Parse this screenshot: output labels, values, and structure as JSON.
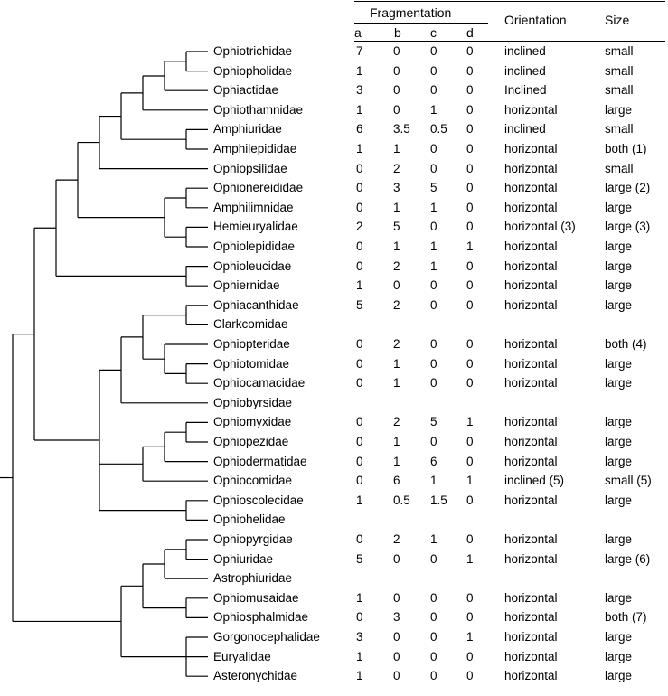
{
  "header": {
    "fragmentation": "Fragmentation",
    "subcols": [
      "a",
      "b",
      "c",
      "d"
    ],
    "orientation": "Orientation",
    "size": "Size"
  },
  "rows": [
    {
      "taxon": "Ophiotrichidae",
      "a": "7",
      "b": "0",
      "c": "0",
      "d": "0",
      "orientation": "inclined",
      "size": "small"
    },
    {
      "taxon": "Ophiopholidae",
      "a": "1",
      "b": "0",
      "c": "0",
      "d": "0",
      "orientation": "inclined",
      "size": "small"
    },
    {
      "taxon": "Ophiactidae",
      "a": "3",
      "b": "0",
      "c": "0",
      "d": "0",
      "orientation": "Inclined",
      "size": "small"
    },
    {
      "taxon": "Ophiothamnidae",
      "a": "1",
      "b": "0",
      "c": "1",
      "d": "0",
      "orientation": "horizontal",
      "size": "large"
    },
    {
      "taxon": "Amphiuridae",
      "a": "6",
      "b": "3.5",
      "c": "0.5",
      "d": "0",
      "orientation": "inclined",
      "size": "small"
    },
    {
      "taxon": "Amphilepididae",
      "a": "1",
      "b": "1",
      "c": "0",
      "d": "0",
      "orientation": "horizontal",
      "size": "both (1)"
    },
    {
      "taxon": "Ophiopsilidae",
      "a": "0",
      "b": "2",
      "c": "0",
      "d": "0",
      "orientation": "horizontal",
      "size": "small"
    },
    {
      "taxon": "Ophionereididae",
      "a": "0",
      "b": "3",
      "c": "5",
      "d": "0",
      "orientation": "horizontal",
      "size": "large (2)"
    },
    {
      "taxon": "Amphilimnidae",
      "a": "0",
      "b": "1",
      "c": "1",
      "d": "0",
      "orientation": "horizontal",
      "size": "large"
    },
    {
      "taxon": "Hemieuryalidae",
      "a": "2",
      "b": "5",
      "c": "0",
      "d": "0",
      "orientation": "horizontal (3)",
      "size": "large (3)"
    },
    {
      "taxon": "Ophiolepididae",
      "a": "0",
      "b": "1",
      "c": "1",
      "d": "1",
      "orientation": "horizontal",
      "size": "large"
    },
    {
      "taxon": "Ophioleucidae",
      "a": "0",
      "b": "2",
      "c": "1",
      "d": "0",
      "orientation": "horizontal",
      "size": "large"
    },
    {
      "taxon": "Ophiernidae",
      "a": "1",
      "b": "0",
      "c": "0",
      "d": "0",
      "orientation": "horizontal",
      "size": "large"
    },
    {
      "taxon": "Ophiacanthidae",
      "a": "5",
      "b": "2",
      "c": "0",
      "d": "0",
      "orientation": "horizontal",
      "size": "large"
    },
    {
      "taxon": "Clarkcomidae",
      "a": "",
      "b": "",
      "c": "",
      "d": "",
      "orientation": "",
      "size": ""
    },
    {
      "taxon": "Ophiopteridae",
      "a": "0",
      "b": "2",
      "c": "0",
      "d": "0",
      "orientation": "horizontal",
      "size": "both (4)"
    },
    {
      "taxon": "Ophiotomidae",
      "a": "0",
      "b": "1",
      "c": "0",
      "d": "0",
      "orientation": "horizontal",
      "size": "large"
    },
    {
      "taxon": "Ophiocamacidae",
      "a": "0",
      "b": "1",
      "c": "0",
      "d": "0",
      "orientation": "horizontal",
      "size": "large"
    },
    {
      "taxon": "Ophiobyrsidae",
      "a": "",
      "b": "",
      "c": "",
      "d": "",
      "orientation": "",
      "size": ""
    },
    {
      "taxon": "Ophiomyxidae",
      "a": "0",
      "b": "2",
      "c": "5",
      "d": "1",
      "orientation": "horizontal",
      "size": "large"
    },
    {
      "taxon": "Ophiopezidae",
      "a": "0",
      "b": "1",
      "c": "0",
      "d": "0",
      "orientation": "horizontal",
      "size": "large"
    },
    {
      "taxon": "Ophiodermatidae",
      "a": "0",
      "b": "1",
      "c": "6",
      "d": "0",
      "orientation": "horizontal",
      "size": "large"
    },
    {
      "taxon": "Ophiocomidae",
      "a": "0",
      "b": "6",
      "c": "1",
      "d": "1",
      "orientation": "inclined (5)",
      "size": "small (5)"
    },
    {
      "taxon": "Ophioscolecidae",
      "a": "1",
      "b": "0.5",
      "c": "1.5",
      "d": "0",
      "orientation": "horizontal",
      "size": "large"
    },
    {
      "taxon": "Ophiohelidae",
      "a": "",
      "b": "",
      "c": "",
      "d": "",
      "orientation": "",
      "size": ""
    },
    {
      "taxon": "Ophiopyrgidae",
      "a": "0",
      "b": "2",
      "c": "1",
      "d": "0",
      "orientation": "horizontal",
      "size": "large"
    },
    {
      "taxon": "Ophiuridae",
      "a": "5",
      "b": "0",
      "c": "0",
      "d": "1",
      "orientation": "horizontal",
      "size": "large (6)"
    },
    {
      "taxon": "Astrophiuridae",
      "a": "",
      "b": "",
      "c": "",
      "d": "",
      "orientation": "",
      "size": ""
    },
    {
      "taxon": "Ophiomusaidae",
      "a": "1",
      "b": "0",
      "c": "0",
      "d": "0",
      "orientation": "horizontal",
      "size": "large"
    },
    {
      "taxon": "Ophiosphalmidae",
      "a": "0",
      "b": "3",
      "c": "0",
      "d": "0",
      "orientation": "horizontal",
      "size": "both (7)"
    },
    {
      "taxon": "Gorgonocephalidae",
      "a": "3",
      "b": "0",
      "c": "0",
      "d": "1",
      "orientation": "horizontal",
      "size": "large"
    },
    {
      "taxon": "Euryalidae",
      "a": "1",
      "b": "0",
      "c": "0",
      "d": "0",
      "orientation": "horizontal",
      "size": "large"
    },
    {
      "taxon": "Asteronychidae",
      "a": "1",
      "b": "0",
      "c": "0",
      "d": "0",
      "orientation": "horizontal",
      "size": "large"
    }
  ],
  "tree": {
    "children": [
      {
        "children": [
          {
            "children": [
              {
                "children": [
                  {
                    "children": [
                      {
                        "children": [
                          {
                            "children": [
                              {
                                "children": [
                                  {
                                    "children": [
                                      {
                                        "leaf": 0
                                      },
                                      {
                                        "leaf": 1
                                      }
                                    ]
                                  },
                                  {
                                    "leaf": 2
                                  }
                                ]
                              },
                              {
                                "leaf": 3
                              }
                            ]
                          },
                          {
                            "children": [
                              {
                                "leaf": 4
                              },
                              {
                                "leaf": 5
                              }
                            ]
                          }
                        ]
                      },
                      {
                        "leaf": 6
                      }
                    ]
                  },
                  {
                    "children": [
                      {
                        "children": [
                          {
                            "leaf": 7
                          },
                          {
                            "leaf": 8
                          }
                        ]
                      },
                      {
                        "children": [
                          {
                            "leaf": 9
                          },
                          {
                            "leaf": 10
                          }
                        ]
                      }
                    ]
                  }
                ]
              },
              {
                "children": [
                  {
                    "leaf": 11
                  },
                  {
                    "leaf": 12
                  }
                ]
              }
            ]
          },
          {
            "children": [
              {
                "children": [
                  {
                    "children": [
                      {
                        "children": [
                          {
                            "leaf": 13
                          },
                          {
                            "leaf": 14
                          }
                        ]
                      },
                      {
                        "children": [
                          {
                            "leaf": 15
                          },
                          {
                            "children": [
                              {
                                "leaf": 16
                              },
                              {
                                "leaf": 17
                              }
                            ]
                          }
                        ]
                      }
                    ]
                  },
                  {
                    "leaf": 18
                  }
                ]
              },
              {
                "children": [
                  {
                    "children": [
                      {
                        "children": [
                          {
                            "leaf": 19
                          },
                          {
                            "leaf": 20
                          }
                        ]
                      },
                      {
                        "leaf": 21
                      }
                    ]
                  },
                  {
                    "leaf": 22
                  }
                ]
              },
              {
                "children": [
                  {
                    "leaf": 23
                  },
                  {
                    "leaf": 24
                  }
                ]
              }
            ]
          }
        ]
      },
      {
        "children": [
          {
            "children": [
              {
                "children": [
                  {
                    "children": [
                      {
                        "leaf": 25
                      },
                      {
                        "leaf": 26
                      }
                    ]
                  },
                  {
                    "leaf": 27
                  }
                ]
              },
              {
                "children": [
                  {
                    "leaf": 28
                  },
                  {
                    "leaf": 29
                  }
                ]
              }
            ]
          },
          {
            "children": [
              {
                "leaf": 30
              },
              {
                "leaf": 31
              },
              {
                "leaf": 32
              }
            ]
          }
        ]
      }
    ]
  }
}
